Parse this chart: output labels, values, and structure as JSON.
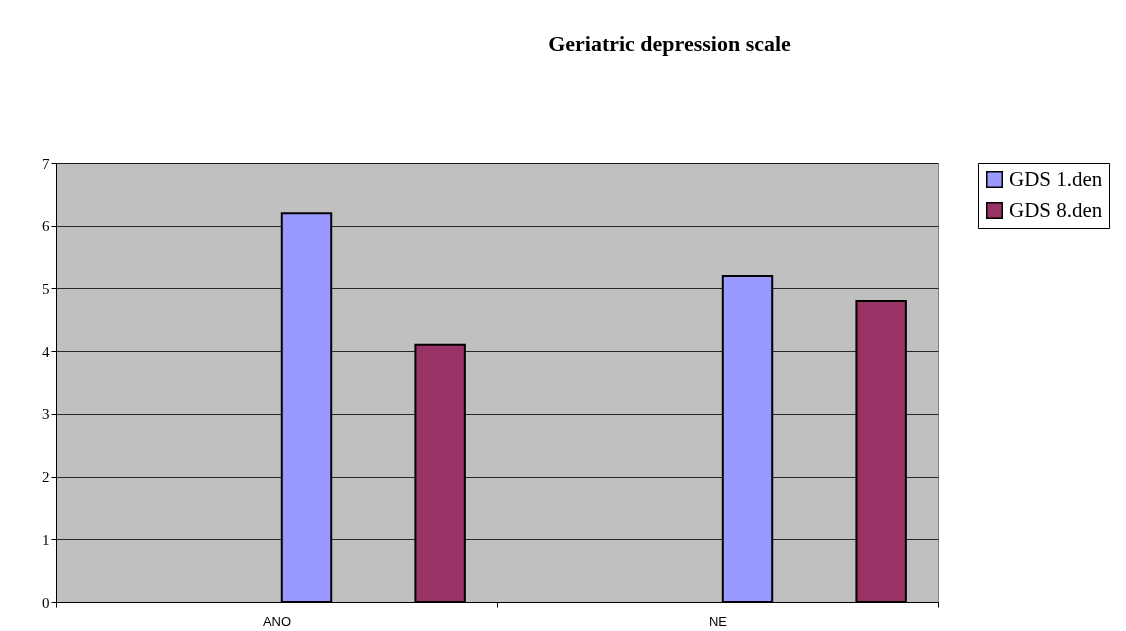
{
  "chart_data": {
    "type": "bar",
    "title": "Geriatric depression scale",
    "categories": [
      "ANO",
      "NE"
    ],
    "series": [
      {
        "name": "GDS 1.den",
        "color": "#9999ff",
        "values": [
          6.2,
          5.2
        ]
      },
      {
        "name": "GDS 8.den",
        "color": "#993366",
        "values": [
          4.1,
          4.8
        ]
      }
    ],
    "ylim": [
      0,
      7
    ],
    "yticks": [
      0,
      1,
      2,
      3,
      4,
      5,
      6,
      7
    ],
    "grid": "y",
    "legend": "right"
  }
}
